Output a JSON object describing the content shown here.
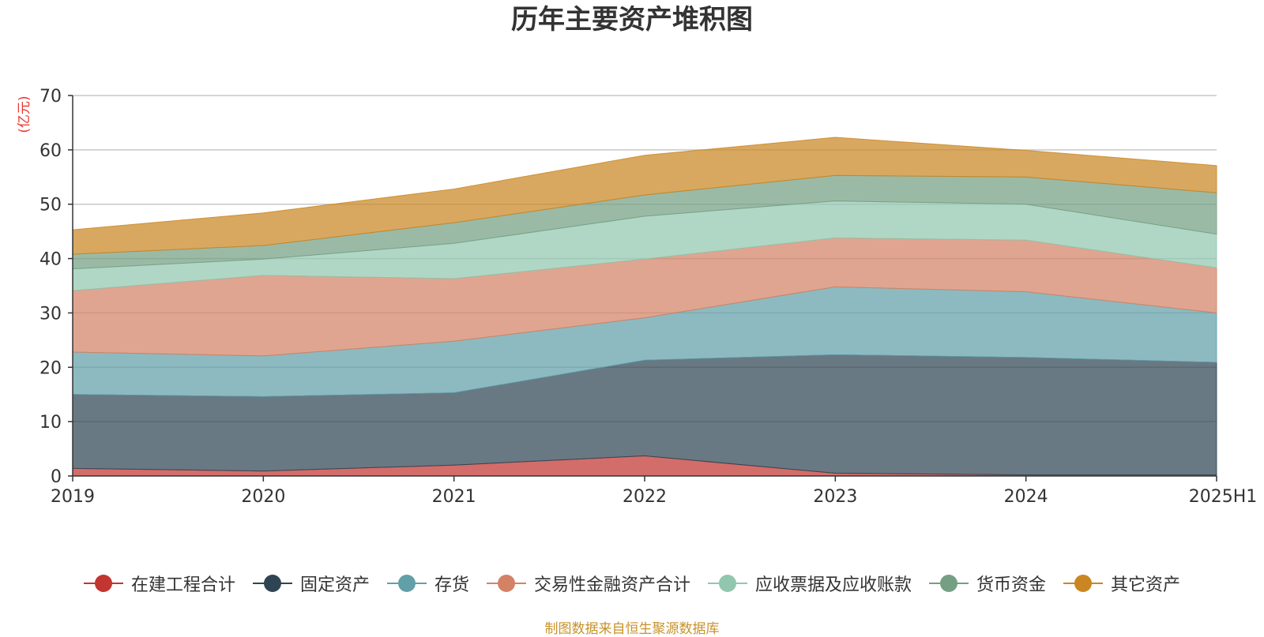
{
  "title": "历年主要资产堆积图",
  "unit": "(亿元)",
  "source": "制图数据来自恒生聚源数据库",
  "chart_data": {
    "type": "area",
    "stacked": true,
    "title": "历年主要资产堆积图",
    "ylabel": "(亿元)",
    "categories": [
      "2019",
      "2020",
      "2021",
      "2022",
      "2023",
      "2024",
      "2025H1"
    ],
    "ylim": [
      0,
      70
    ],
    "yticks": [
      0,
      10,
      20,
      30,
      40,
      50,
      60,
      70
    ],
    "grid": true,
    "legend_position": "bottom",
    "series": [
      {
        "name": "在建工程合计",
        "color": "#c23531",
        "values": [
          1.4,
          0.9,
          2.0,
          3.7,
          0.5,
          0.2,
          0.2
        ]
      },
      {
        "name": "固定资产",
        "color": "#2f4554",
        "values": [
          13.6,
          13.7,
          13.3,
          17.6,
          21.8,
          21.6,
          20.7
        ]
      },
      {
        "name": "存货",
        "color": "#61a0a8",
        "values": [
          7.8,
          7.5,
          9.5,
          7.8,
          12.5,
          12.1,
          9.1
        ]
      },
      {
        "name": "交易性金融资产合计",
        "color": "#d48265",
        "values": [
          11.3,
          14.8,
          11.5,
          10.8,
          9.0,
          9.5,
          8.3
        ]
      },
      {
        "name": "应收票据及应收账款",
        "color": "#91c7ae",
        "values": [
          4.0,
          3.0,
          6.5,
          7.9,
          6.8,
          6.6,
          6.2
        ]
      },
      {
        "name": "货币资金",
        "color": "#749f83",
        "values": [
          2.7,
          2.5,
          3.8,
          3.9,
          4.7,
          5.0,
          7.6
        ]
      },
      {
        "name": "其它资产",
        "color": "#ca8622",
        "values": [
          4.5,
          6.0,
          6.2,
          7.3,
          7.0,
          4.9,
          5.0
        ]
      }
    ]
  }
}
